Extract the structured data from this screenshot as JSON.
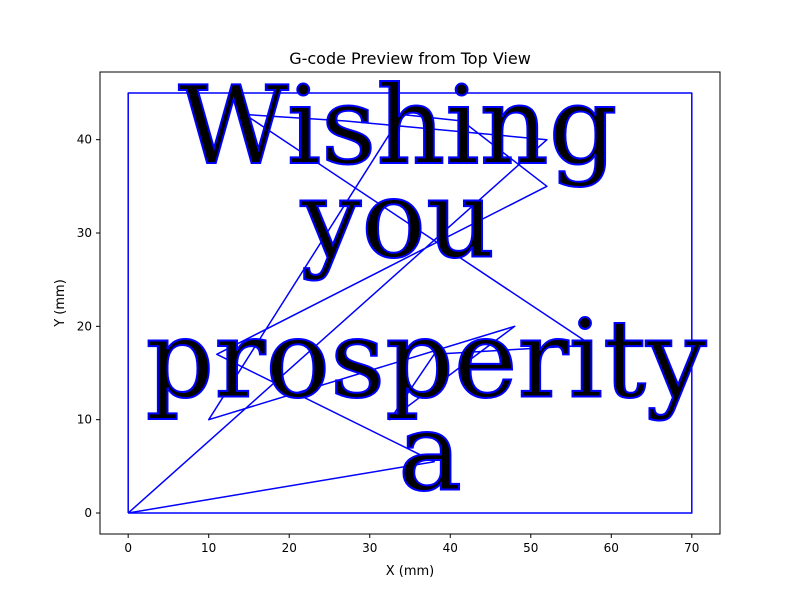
{
  "chart_data": {
    "type": "line",
    "title": "G-code Preview from Top View",
    "xlabel": "X (mm)",
    "ylabel": "Y (mm)",
    "xlim": [
      -3.5,
      73.5
    ],
    "ylim": [
      -2.25,
      47.25
    ],
    "xticks": [
      0,
      10,
      20,
      30,
      40,
      50,
      60,
      70
    ],
    "yticks": [
      0,
      10,
      20,
      30,
      40
    ],
    "grid": false,
    "legend": "none",
    "series_color": "#0000ff",
    "text_lines": [
      {
        "text": "Wishing",
        "x": 33.5,
        "y": 37.5
      },
      {
        "text": "you",
        "x": 33.5,
        "y": 27.5
      },
      {
        "text": "prosperity",
        "x": 37,
        "y": 12.5
      },
      {
        "text": "a",
        "x": 37.5,
        "y": 2.5
      }
    ],
    "series": [
      {
        "points": [
          [
            0,
            0
          ],
          [
            70,
            0
          ],
          [
            70,
            45
          ],
          [
            0,
            45
          ],
          [
            0,
            0
          ]
        ]
      },
      {
        "points": [
          [
            0,
            0
          ],
          [
            52,
            40
          ],
          [
            27,
            42
          ],
          [
            14.5,
            42.7
          ],
          [
            57.5,
            18
          ],
          [
            38,
            17
          ],
          [
            32.5,
            10
          ],
          [
            48,
            20
          ],
          [
            10,
            10
          ],
          [
            34,
            42.7
          ],
          [
            41.5,
            42
          ],
          [
            52,
            35
          ],
          [
            11,
            17
          ],
          [
            38,
            5.5
          ],
          [
            0,
            0
          ]
        ]
      }
    ]
  }
}
